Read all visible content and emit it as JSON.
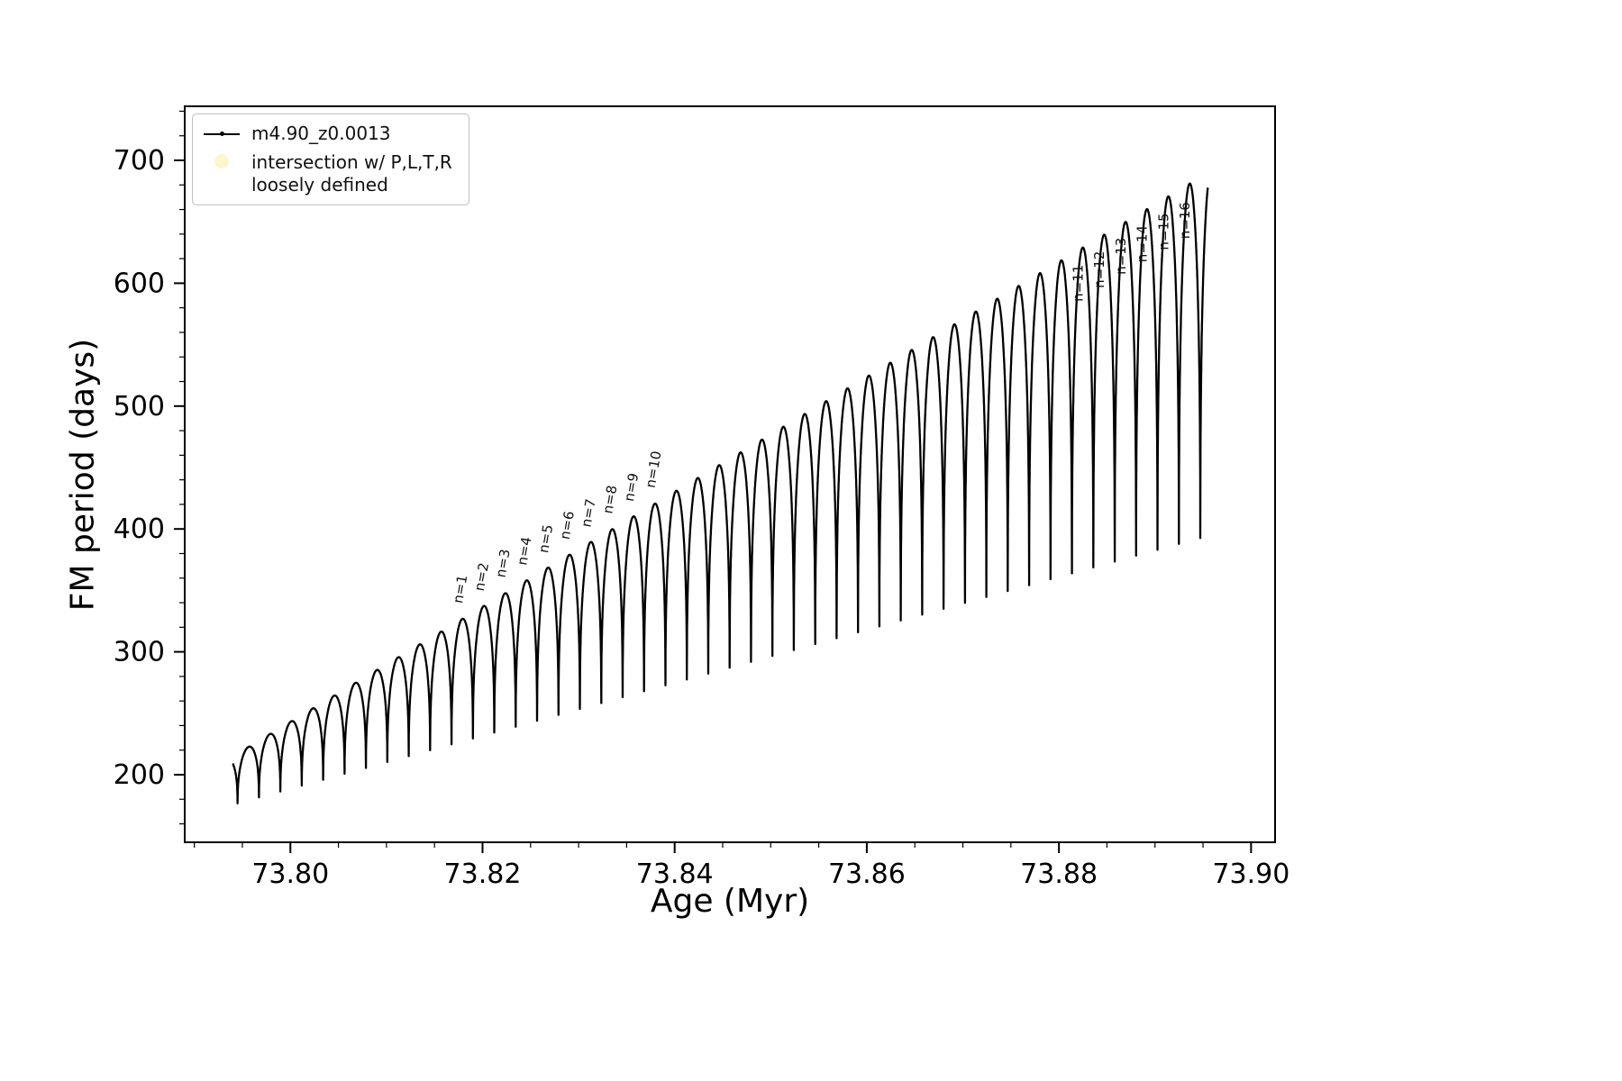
{
  "chart_data": {
    "type": "line",
    "title": "",
    "xlabel": "Age (Myr)",
    "ylabel": "FM period (days)",
    "xlim": [
      73.789,
      73.9025
    ],
    "ylim": [
      145,
      744
    ],
    "x_ticks": [
      73.8,
      73.82,
      73.84,
      73.86,
      73.88,
      73.9
    ],
    "x_tick_labels": [
      "73.80",
      "73.82",
      "73.84",
      "73.86",
      "73.88",
      "73.90"
    ],
    "x_minor_step": 0.005,
    "y_ticks": [
      200,
      300,
      400,
      500,
      600,
      700
    ],
    "y_tick_labels": [
      "200",
      "300",
      "400",
      "500",
      "600",
      "700"
    ],
    "y_minor_step": 20,
    "grid": false,
    "background_color": "#ffffff",
    "series_color": "#000000",
    "legend_position": "upper-left",
    "legend": [
      {
        "label": "m4.90_z0.0013",
        "marker": "line-dot",
        "color": "#000000"
      },
      {
        "label_line1": "intersection w/ P,L,T,R",
        "label_line2": "loosely defined",
        "marker": "circle",
        "color": "#fdf5c9"
      }
    ],
    "curve": {
      "description": "quasi-periodic arches: y = bottom(x) + (top(x)-bottom(x)) * |sin(pi*(x-cusp_start)/arch_period)|^shape_exponent",
      "x_start": 73.794,
      "x_end": 73.8955,
      "cusp_start": 73.7945,
      "arch_period": 0.002227,
      "shape_exponent": 0.32,
      "top_envelope": {
        "x": [
          73.794,
          73.8955
        ],
        "y": [
          215,
          690
        ]
      },
      "bottom_envelope": {
        "x": [
          73.794,
          73.8955
        ],
        "y": [
          170,
          352
        ]
      }
    },
    "annotations": [
      {
        "label": "n=1",
        "x": 73.81788,
        "y": 339,
        "rotation": -80
      },
      {
        "label": "n=2",
        "x": 73.82011,
        "y": 349,
        "rotation": -80
      },
      {
        "label": "n=3",
        "x": 73.82233,
        "y": 360,
        "rotation": -80
      },
      {
        "label": "n=4",
        "x": 73.82456,
        "y": 370,
        "rotation": -80
      },
      {
        "label": "n=5",
        "x": 73.82679,
        "y": 380,
        "rotation": -80
      },
      {
        "label": "n=6",
        "x": 73.82901,
        "y": 391,
        "rotation": -80
      },
      {
        "label": "n=7",
        "x": 73.83124,
        "y": 401,
        "rotation": -80
      },
      {
        "label": "n=8",
        "x": 73.83347,
        "y": 412,
        "rotation": -80
      },
      {
        "label": "n=9",
        "x": 73.83569,
        "y": 422,
        "rotation": -80
      },
      {
        "label": "n=10",
        "x": 73.83792,
        "y": 433,
        "rotation": -80
      },
      {
        "label": "n=11",
        "x": 73.88247,
        "y": 585,
        "rotation": -90
      },
      {
        "label": "n=12",
        "x": 73.8847,
        "y": 596,
        "rotation": -90
      },
      {
        "label": "n=13",
        "x": 73.88693,
        "y": 607,
        "rotation": -90
      },
      {
        "label": "n=14",
        "x": 73.88915,
        "y": 617,
        "rotation": -90
      },
      {
        "label": "n=15",
        "x": 73.89138,
        "y": 627,
        "rotation": -90
      },
      {
        "label": "n=16",
        "x": 73.89361,
        "y": 636,
        "rotation": -90
      }
    ]
  }
}
